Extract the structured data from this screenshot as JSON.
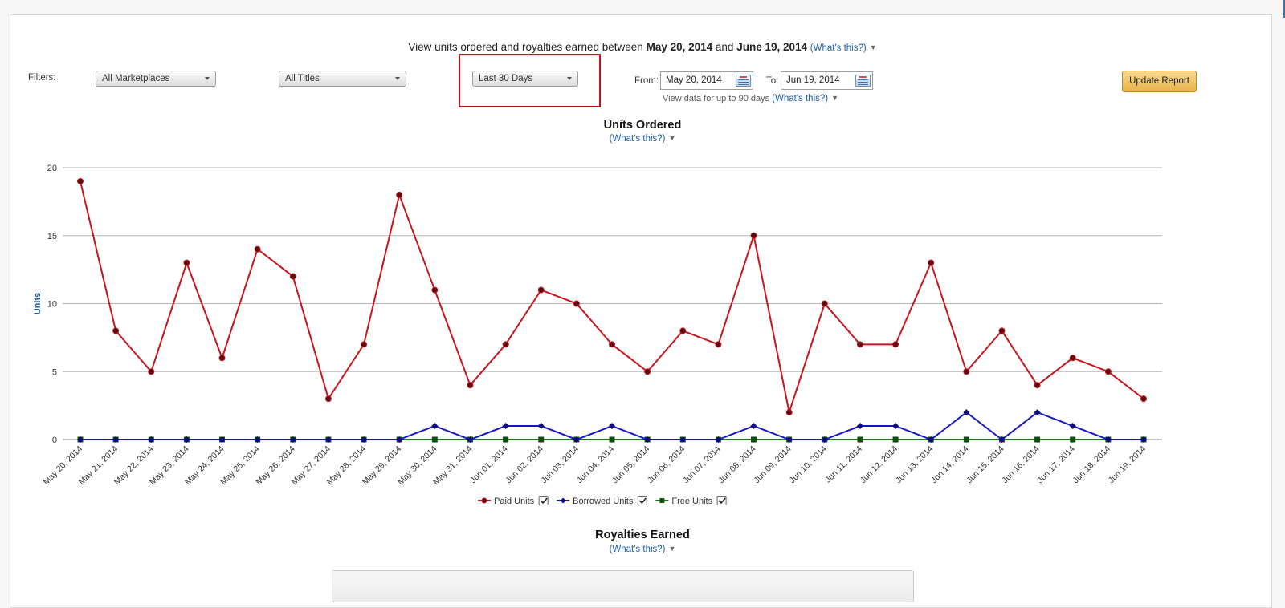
{
  "summary": {
    "prefix": "View units ordered and royalties earned between",
    "start": "May 20, 2014",
    "and": "and",
    "end": "June 19, 2014",
    "whats_this": "(What's this?)"
  },
  "filters": {
    "label": "Filters:",
    "marketplace": "All Marketplaces",
    "titles": "All Titles",
    "period": "Last 30 Days"
  },
  "date_range": {
    "from_label": "From:",
    "from_value": "May 20, 2014",
    "to_label": "To:",
    "to_value": "Jun 19, 2014",
    "hint": "View data for up to 90 days",
    "hint_link": "(What's this?)"
  },
  "update_button": "Update Report",
  "units_section": {
    "title": "Units Ordered",
    "whats_this": "(What's this?)"
  },
  "royalties_section": {
    "title": "Royalties Earned",
    "whats_this": "(What's this?)"
  },
  "colors": {
    "paid": "#c8141c",
    "borrowed": "#1616c8",
    "free": "#1a7a1a",
    "accent_button": "#e8b449",
    "link": "#1e5ea8",
    "highlight": "#c0141c"
  },
  "chart_data": {
    "type": "line",
    "title": "",
    "ylabel": "Units",
    "xlabel": "",
    "ylim": [
      0,
      20
    ],
    "yticks": [
      0,
      5,
      10,
      15,
      20
    ],
    "grid": true,
    "legend_position": "bottom",
    "categories": [
      "May 20, 2014",
      "May 21, 2014",
      "May 22, 2014",
      "May 23, 2014",
      "May 24, 2014",
      "May 25, 2014",
      "May 26, 2014",
      "May 27, 2014",
      "May 28, 2014",
      "May 29, 2014",
      "May 30, 2014",
      "May 31, 2014",
      "Jun 01, 2014",
      "Jun 02, 2014",
      "Jun 03, 2014",
      "Jun 04, 2014",
      "Jun 05, 2014",
      "Jun 06, 2014",
      "Jun 07, 2014",
      "Jun 08, 2014",
      "Jun 09, 2014",
      "Jun 10, 2014",
      "Jun 11, 2014",
      "Jun 12, 2014",
      "Jun 13, 2014",
      "Jun 14, 2014",
      "Jun 15, 2014",
      "Jun 16, 2014",
      "Jun 17, 2014",
      "Jun 18, 2014",
      "Jun 19, 2014"
    ],
    "series": [
      {
        "name": "Paid Units",
        "color": "#c8141c",
        "marker": "circle",
        "values": [
          19,
          8,
          5,
          13,
          6,
          14,
          12,
          3,
          7,
          18,
          11,
          4,
          7,
          11,
          10,
          7,
          5,
          8,
          7,
          15,
          2,
          10,
          7,
          7,
          13,
          5,
          8,
          4,
          6,
          5,
          3
        ]
      },
      {
        "name": "Borrowed Units",
        "color": "#1616c8",
        "marker": "diamond",
        "values": [
          0,
          0,
          0,
          0,
          0,
          0,
          0,
          0,
          0,
          0,
          1,
          0,
          1,
          1,
          0,
          1,
          0,
          0,
          0,
          1,
          0,
          0,
          1,
          1,
          0,
          2,
          0,
          2,
          1,
          0,
          0
        ]
      },
      {
        "name": "Free Units",
        "color": "#1a7a1a",
        "marker": "square",
        "values": [
          0,
          0,
          0,
          0,
          0,
          0,
          0,
          0,
          0,
          0,
          0,
          0,
          0,
          0,
          0,
          0,
          0,
          0,
          0,
          0,
          0,
          0,
          0,
          0,
          0,
          0,
          0,
          0,
          0,
          0,
          0
        ]
      }
    ]
  }
}
